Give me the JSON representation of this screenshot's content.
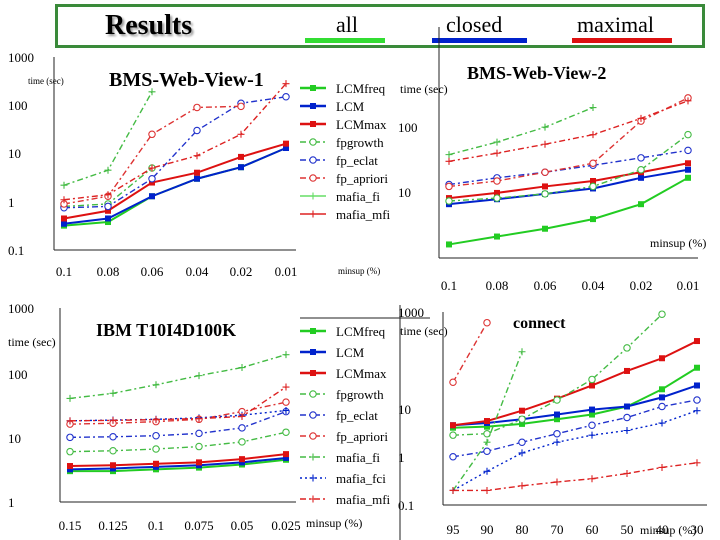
{
  "header": {
    "title": "Results",
    "legend": [
      {
        "label": "all",
        "color": "#33dd33"
      },
      {
        "label": "closed",
        "color": "#0022cc"
      },
      {
        "label": "maximal",
        "color": "#dd1111"
      }
    ]
  },
  "legend_items": [
    {
      "label": "LCMfreq",
      "color": "#22cc22",
      "marker": "square",
      "dash": "solid"
    },
    {
      "label": "LCM",
      "color": "#0022cc",
      "marker": "square",
      "dash": "solid"
    },
    {
      "label": "LCMmax",
      "color": "#dd1111",
      "marker": "square",
      "dash": "solid"
    },
    {
      "label": "fpgrowth",
      "color": "#44bb44",
      "marker": "circle",
      "dash": "dashdot"
    },
    {
      "label": "fp_eclat",
      "color": "#2233cc",
      "marker": "circle",
      "dash": "dashdot"
    },
    {
      "label": "fp_apriori",
      "color": "#dd3333",
      "marker": "circle",
      "dash": "dashdot"
    },
    {
      "label": "mafia_fi",
      "color": "#66dd66",
      "marker": "plus",
      "dash": "solid"
    },
    {
      "label": "mafia_mfi",
      "color": "#dd2222",
      "marker": "plus",
      "dash": "solid"
    }
  ],
  "legend_items_ibm": [
    {
      "label": "LCMfreq",
      "color": "#22cc22",
      "marker": "square",
      "dash": "solid"
    },
    {
      "label": "LCM",
      "color": "#0022cc",
      "marker": "square",
      "dash": "solid"
    },
    {
      "label": "LCMmax",
      "color": "#dd1111",
      "marker": "square",
      "dash": "solid"
    },
    {
      "label": "fpgrowth",
      "color": "#44bb44",
      "marker": "circle",
      "dash": "dashdot"
    },
    {
      "label": "fp_eclat",
      "color": "#2233cc",
      "marker": "circle",
      "dash": "dashdot"
    },
    {
      "label": "fp_apriori",
      "color": "#dd3333",
      "marker": "circle",
      "dash": "dashdot"
    },
    {
      "label": "mafia_fi",
      "color": "#44bb44",
      "marker": "plus",
      "dash": "dashdot"
    },
    {
      "label": "mafia_fci",
      "color": "#0022cc",
      "marker": "plus",
      "dash": "dot"
    },
    {
      "label": "mafia_mfi",
      "color": "#dd2222",
      "marker": "plus",
      "dash": "dashdot"
    }
  ],
  "chart_data": [
    {
      "type": "line",
      "title": "BMS-Web-View-1",
      "ylabel": "time (sec)",
      "xlabel": "minsup (%)",
      "yscale": "log",
      "ylim": [
        0.1,
        1000
      ],
      "yticks": [
        "1000",
        "100",
        "10",
        "1",
        "0.1"
      ],
      "categories": [
        "0.1",
        "0.08",
        "0.06",
        "0.04",
        "0.02",
        "0.01"
      ],
      "series": [
        {
          "name": "LCMfreq",
          "values": [
            0.32,
            0.38,
            1.3,
            3.0,
            5.2,
            13
          ]
        },
        {
          "name": "LCM",
          "values": [
            0.35,
            0.45,
            1.3,
            3.0,
            5.2,
            13
          ]
        },
        {
          "name": "LCMmax",
          "values": [
            0.45,
            0.65,
            2.5,
            4.0,
            8.5,
            16
          ]
        },
        {
          "name": "fpgrowth",
          "values": [
            0.8,
            0.9,
            5.0,
            null,
            null,
            null
          ]
        },
        {
          "name": "fp_eclat",
          "values": [
            0.75,
            0.8,
            3.0,
            30,
            110,
            150
          ]
        },
        {
          "name": "fp_apriori",
          "values": [
            0.9,
            1.3,
            25,
            90,
            95,
            null
          ]
        },
        {
          "name": "mafia_fi",
          "values": [
            2.2,
            4.5,
            190,
            null,
            null,
            null
          ]
        },
        {
          "name": "mafia_mfi",
          "values": [
            1.1,
            1.4,
            5.0,
            9.0,
            25,
            280
          ]
        }
      ]
    },
    {
      "type": "line",
      "title": "BMS-Web-View-2",
      "ylabel": "time (sec)",
      "xlabel": "minsup (%)",
      "yscale": "log",
      "ylim": [
        1,
        1000
      ],
      "yticks": [
        "100",
        "10"
      ],
      "categories": [
        "0.1",
        "0.08",
        "0.06",
        "0.04",
        "0.02",
        "0.01"
      ],
      "series": [
        {
          "name": "LCMfreq",
          "values": [
            1.5,
            1.9,
            2.4,
            3.2,
            5.0,
            11
          ]
        },
        {
          "name": "LCM",
          "values": [
            5.0,
            5.8,
            6.8,
            8.0,
            11,
            14
          ]
        },
        {
          "name": "LCMmax",
          "values": [
            6.0,
            7.0,
            8.5,
            10,
            13,
            17
          ]
        },
        {
          "name": "fpgrowth",
          "values": [
            5.5,
            6.0,
            6.8,
            8.5,
            14,
            40
          ]
        },
        {
          "name": "fp_eclat",
          "values": [
            9.0,
            11,
            13,
            16,
            20,
            25
          ]
        },
        {
          "name": "fp_apriori",
          "values": [
            8.5,
            10,
            13,
            17,
            60,
            120
          ]
        },
        {
          "name": "mafia_fi",
          "values": [
            22,
            32,
            50,
            90,
            null,
            null
          ]
        },
        {
          "name": "mafia_mfi",
          "values": [
            18,
            23,
            30,
            40,
            65,
            110
          ]
        }
      ]
    },
    {
      "type": "line",
      "title": "IBM T10I4D100K",
      "ylabel": "time (sec)",
      "xlabel": "minsup (%)",
      "yscale": "log",
      "ylim": [
        1,
        1000
      ],
      "yticks": [
        "1000",
        "100",
        "10",
        "1"
      ],
      "categories": [
        "0.15",
        "0.125",
        "0.1",
        "0.075",
        "0.05",
        "0.025"
      ],
      "series": [
        {
          "name": "LCMfreq",
          "values": [
            3.0,
            3.0,
            3.2,
            3.4,
            3.8,
            4.5
          ]
        },
        {
          "name": "LCM",
          "values": [
            3.2,
            3.3,
            3.5,
            3.7,
            4.1,
            4.8
          ]
        },
        {
          "name": "LCMmax",
          "values": [
            3.6,
            3.7,
            3.9,
            4.1,
            4.6,
            5.5
          ]
        },
        {
          "name": "fpgrowth",
          "values": [
            6.0,
            6.2,
            6.6,
            7.2,
            8.5,
            12
          ]
        },
        {
          "name": "fp_eclat",
          "values": [
            10,
            10.2,
            10.6,
            11.5,
            14,
            25
          ]
        },
        {
          "name": "fp_apriori",
          "values": [
            16,
            16.5,
            17.5,
            19,
            25,
            35
          ]
        },
        {
          "name": "mafia_fi",
          "values": [
            40,
            48,
            65,
            90,
            120,
            190
          ]
        },
        {
          "name": "mafia_fci",
          "values": [
            18,
            18.5,
            19,
            20,
            22,
            26
          ]
        },
        {
          "name": "mafia_mfi",
          "values": [
            18,
            18.3,
            18.8,
            19.5,
            21,
            60
          ]
        }
      ]
    },
    {
      "type": "line",
      "title": "connect",
      "ylabel": "time (sec)",
      "xlabel": "minsup (%)",
      "yscale": "log",
      "ylim": [
        0.1,
        1000
      ],
      "yticks": [
        "1000",
        "10",
        "1",
        "0.1"
      ],
      "categories": [
        "95",
        "90",
        "80",
        "70",
        "60",
        "50",
        "40",
        "30"
      ],
      "series": [
        {
          "name": "LCMfreq",
          "values": [
            4.0,
            4.2,
            4.8,
            6.0,
            7.5,
            11,
            25,
            70
          ]
        },
        {
          "name": "LCM",
          "values": [
            4.5,
            5.0,
            6.0,
            7.5,
            9.5,
            11,
            17,
            30
          ]
        },
        {
          "name": "LCMmax",
          "values": [
            4.5,
            5.5,
            9.0,
            16,
            30,
            60,
            110,
            250
          ]
        },
        {
          "name": "fpgrowth",
          "values": [
            2.8,
            3.0,
            6.0,
            15,
            40,
            180,
            900,
            null
          ]
        },
        {
          "name": "fp_eclat",
          "values": [
            1.0,
            1.3,
            2.0,
            3.0,
            4.5,
            6.5,
            11,
            15
          ]
        },
        {
          "name": "fp_apriori",
          "values": [
            35,
            600,
            null,
            null,
            null,
            null,
            null,
            null
          ]
        },
        {
          "name": "mafia_fi",
          "values": [
            0.2,
            2.0,
            150,
            null,
            null,
            null,
            null,
            null
          ]
        },
        {
          "name": "mafia_fci",
          "values": [
            0.2,
            0.5,
            1.2,
            2.0,
            2.8,
            3.5,
            5.0,
            9.0
          ]
        },
        {
          "name": "mafia_mfi",
          "values": [
            0.2,
            0.2,
            0.25,
            0.3,
            0.35,
            0.45,
            0.6,
            0.75
          ]
        }
      ]
    }
  ]
}
